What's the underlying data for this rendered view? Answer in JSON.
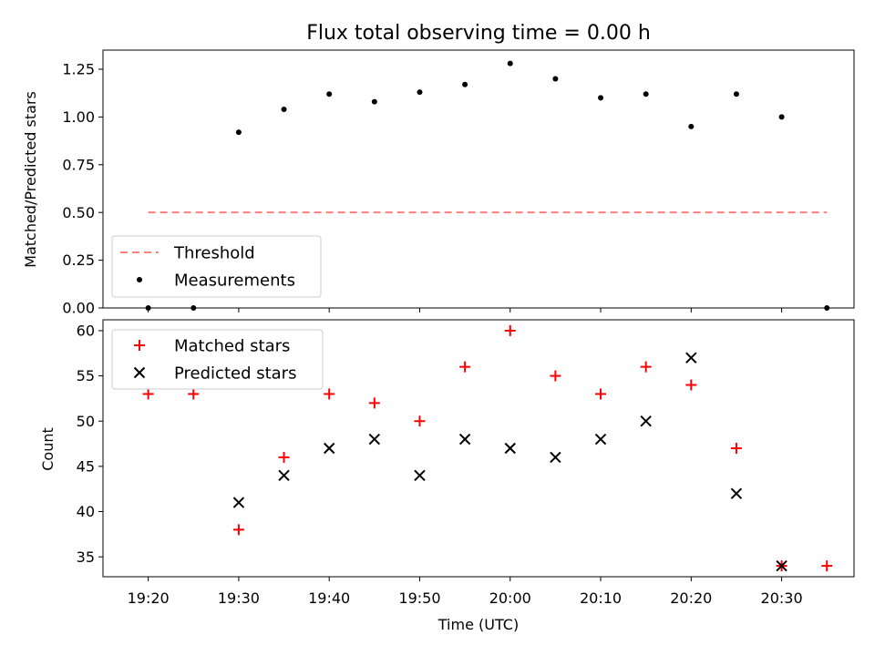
{
  "colors": {
    "threshold": "#ff7f7f",
    "measurement": "#000000",
    "matched": "#ff0000",
    "predicted": "#000000"
  },
  "chart_data": [
    {
      "type": "scatter",
      "title": "Flux total observing time = 0.00 h",
      "xlabel": "",
      "ylabel": "Matched/Predicted stars",
      "xlim": [
        "19:15",
        "20:38"
      ],
      "ylim": [
        0,
        1.35
      ],
      "yticks": [
        "0.00",
        "0.25",
        "0.50",
        "0.75",
        "1.00",
        "1.25"
      ],
      "xticks": [
        "19:20",
        "19:30",
        "19:40",
        "19:50",
        "20:00",
        "20:10",
        "20:20",
        "20:30"
      ],
      "legend": {
        "placement": "lower-left",
        "entries": [
          "Threshold",
          "Measurements"
        ]
      },
      "series": [
        {
          "name": "Threshold",
          "kind": "dashed-line",
          "x": [
            "19:20",
            "20:35"
          ],
          "y": [
            0.5,
            0.5
          ]
        },
        {
          "name": "Measurements",
          "kind": "dots",
          "x": [
            "19:20",
            "19:25",
            "19:30",
            "19:35",
            "19:40",
            "19:45",
            "19:50",
            "19:55",
            "20:00",
            "20:05",
            "20:10",
            "20:15",
            "20:20",
            "20:25",
            "20:30",
            "20:35"
          ],
          "y": [
            0.0,
            0.0,
            0.92,
            1.04,
            1.12,
            1.08,
            1.13,
            1.17,
            1.28,
            1.2,
            1.1,
            1.12,
            0.95,
            1.12,
            1.0,
            0.0
          ]
        }
      ]
    },
    {
      "type": "scatter",
      "title": "",
      "xlabel": "Time (UTC)",
      "ylabel": "Count",
      "xlim": [
        "19:15",
        "20:38"
      ],
      "ylim": [
        32.8,
        61.2
      ],
      "yticks": [
        "35",
        "40",
        "45",
        "50",
        "55",
        "60"
      ],
      "xticks": [
        "19:20",
        "19:30",
        "19:40",
        "19:50",
        "20:00",
        "20:10",
        "20:20",
        "20:30"
      ],
      "legend": {
        "placement": "upper-left",
        "entries": [
          "Matched stars",
          "Predicted stars"
        ]
      },
      "series": [
        {
          "name": "Matched stars",
          "kind": "plus",
          "x": [
            "19:20",
            "19:25",
            "19:30",
            "19:35",
            "19:40",
            "19:45",
            "19:50",
            "19:55",
            "20:00",
            "20:05",
            "20:10",
            "20:15",
            "20:20",
            "20:25",
            "20:30",
            "20:35"
          ],
          "y": [
            53,
            53,
            38,
            46,
            53,
            52,
            50,
            56,
            60,
            55,
            53,
            56,
            54,
            47,
            34,
            34
          ]
        },
        {
          "name": "Predicted stars",
          "kind": "x",
          "x": [
            "19:30",
            "19:35",
            "19:40",
            "19:45",
            "19:50",
            "19:55",
            "20:00",
            "20:05",
            "20:10",
            "20:15",
            "20:20",
            "20:25",
            "20:30"
          ],
          "y": [
            41,
            44,
            47,
            48,
            44,
            48,
            47,
            46,
            48,
            50,
            57,
            42,
            34
          ]
        }
      ]
    }
  ]
}
